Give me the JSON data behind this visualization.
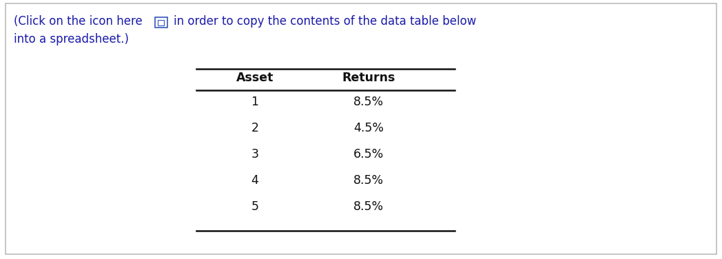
{
  "header_line1a": "(Click on the icon here ",
  "header_line1b": "  in order to copy the contents of the data table below",
  "header_line2": "into a spreadsheet.)",
  "header_color": "#1a1aaa",
  "col_headers": [
    "Asset",
    "Returns"
  ],
  "rows": [
    [
      "1",
      "8.5%"
    ],
    [
      "2",
      "4.5%"
    ],
    [
      "3",
      "6.5%"
    ],
    [
      "4",
      "8.5%"
    ],
    [
      "5",
      "8.5%"
    ]
  ],
  "bg_color": "#ffffff",
  "border_color": "#bbbbbb",
  "text_color": "#111111",
  "icon_color": "#3355bb",
  "col_header_fontsize": 12.5,
  "data_fontsize": 12.5,
  "header_fontsize": 12.0
}
